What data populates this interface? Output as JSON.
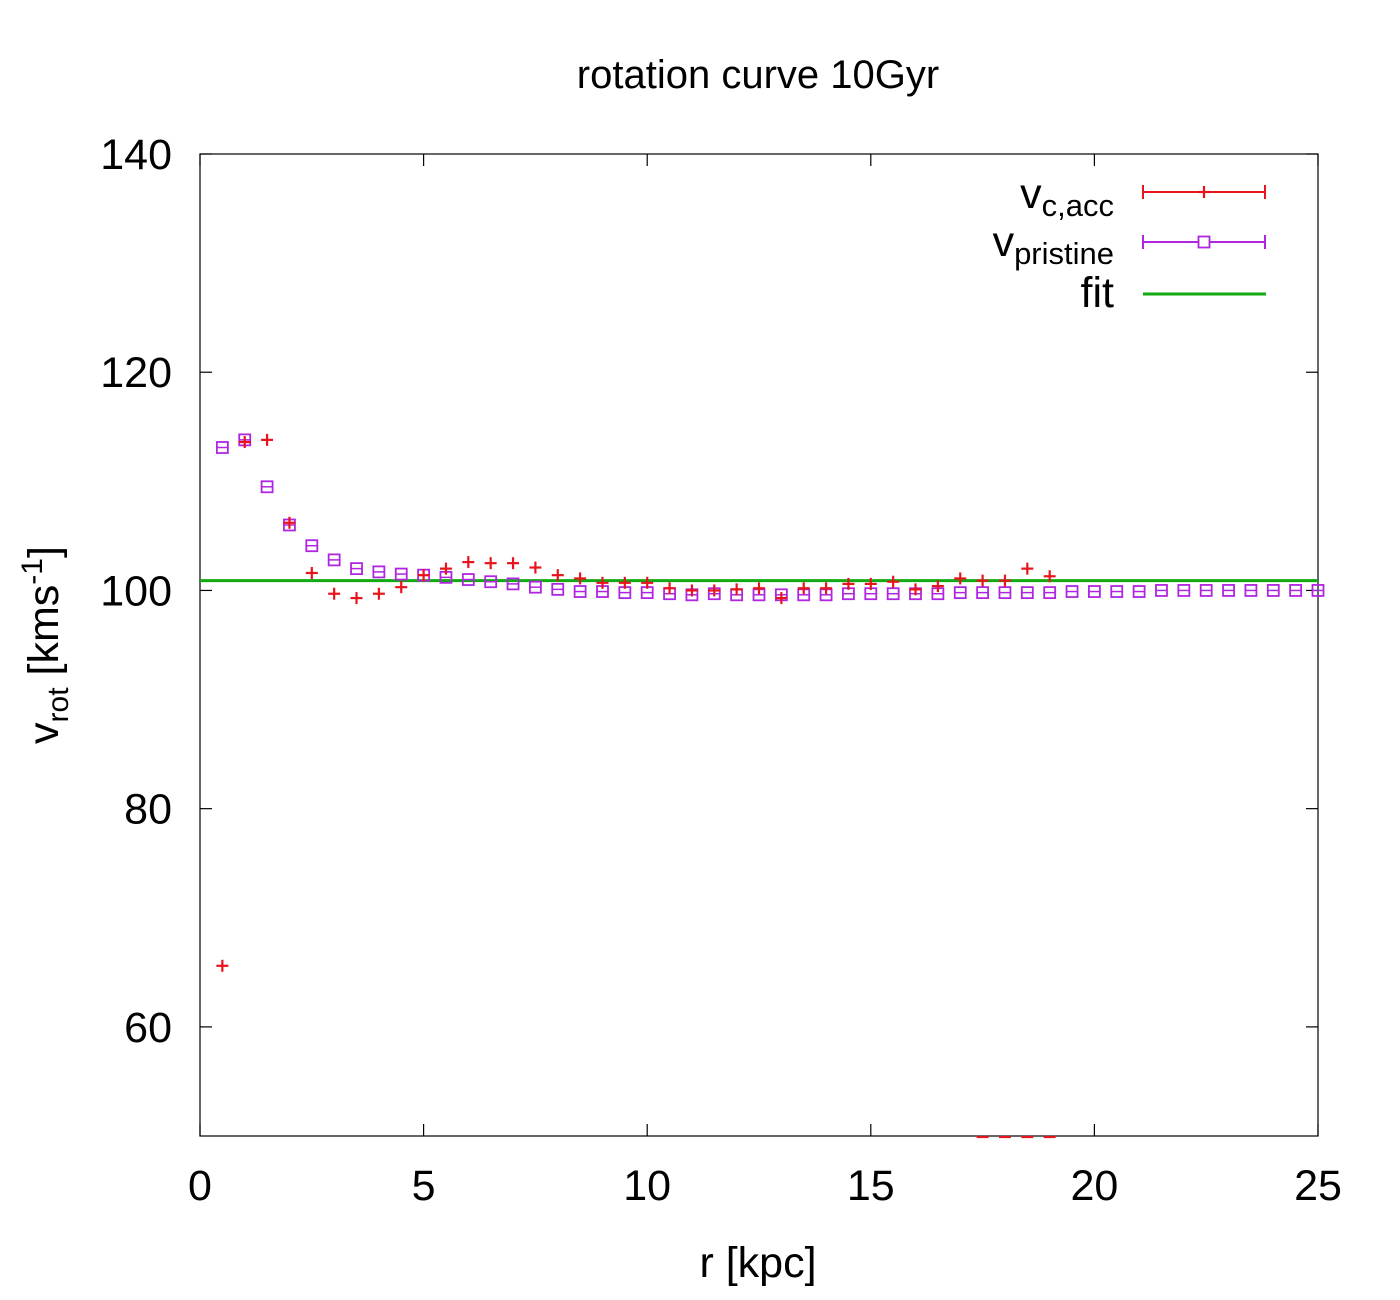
{
  "chart_data": {
    "type": "scatter",
    "title": "rotation curve 10Gyr",
    "xlabel": "r [kpc]",
    "ylabel": {
      "main": "v",
      "sub": "rot",
      "unit_prefix": " [kms",
      "unit_sup": "-1",
      "unit_suffix": "]"
    },
    "xlim": [
      0,
      25
    ],
    "ylim": [
      50,
      140
    ],
    "xticks": [
      0,
      5,
      10,
      15,
      20,
      25
    ],
    "yticks": [
      60,
      80,
      100,
      120,
      140
    ],
    "grid": false,
    "legend_position": "top-right",
    "colors": {
      "acc": "#e8141c",
      "pristine": "#b026e0",
      "fit": "#12aa12",
      "axis": "#000000"
    },
    "series": [
      {
        "key": "acc",
        "legend_main": "v",
        "legend_sub": "c,acc",
        "marker": "plus",
        "x": [
          0.5,
          1.0,
          1.5,
          2.0,
          2.5,
          3.0,
          3.5,
          4.0,
          4.5,
          5.0,
          5.5,
          6.0,
          6.5,
          7.0,
          7.5,
          8.0,
          8.5,
          9.0,
          9.5,
          10.0,
          10.5,
          11.0,
          11.5,
          12.0,
          12.5,
          13.0,
          13.5,
          14.0,
          14.5,
          15.0,
          15.5,
          16.0,
          16.5,
          17.0,
          17.5,
          18.0,
          18.5,
          19.0
        ],
        "y": [
          65.6,
          113.6,
          113.8,
          106.2,
          101.6,
          99.7,
          99.3,
          99.7,
          100.3,
          101.4,
          102.0,
          102.6,
          102.5,
          102.5,
          102.1,
          101.4,
          101.1,
          100.7,
          100.7,
          100.7,
          100.2,
          100.0,
          100.0,
          100.1,
          100.2,
          99.3,
          100.2,
          100.2,
          100.6,
          100.6,
          100.8,
          100.1,
          100.4,
          101.1,
          100.9,
          100.9,
          102.0,
          101.3
        ]
      },
      {
        "key": "pristine",
        "legend_main": "v",
        "legend_sub": "pristine",
        "marker": "square",
        "x": [
          0.5,
          1.0,
          1.5,
          2.0,
          2.5,
          3.0,
          3.5,
          4.0,
          4.5,
          5.0,
          5.5,
          6.0,
          6.5,
          7.0,
          7.5,
          8.0,
          8.5,
          9.0,
          9.5,
          10.0,
          10.5,
          11.0,
          11.5,
          12.0,
          12.5,
          13.0,
          13.5,
          14.0,
          14.5,
          15.0,
          15.5,
          16.0,
          16.5,
          17.0,
          17.5,
          18.0,
          18.5,
          19.0,
          19.5,
          20.0,
          20.5,
          21.0,
          21.5,
          22.0,
          22.5,
          23.0,
          23.5,
          24.0,
          24.5,
          25.0
        ],
        "y": [
          113.1,
          113.8,
          109.5,
          106.0,
          104.1,
          102.8,
          102.0,
          101.7,
          101.5,
          101.4,
          101.2,
          101.0,
          100.8,
          100.6,
          100.3,
          100.1,
          99.9,
          99.9,
          99.8,
          99.8,
          99.7,
          99.6,
          99.7,
          99.6,
          99.6,
          99.6,
          99.6,
          99.6,
          99.7,
          99.7,
          99.7,
          99.7,
          99.7,
          99.8,
          99.8,
          99.8,
          99.8,
          99.8,
          99.9,
          99.9,
          99.9,
          99.9,
          100.0,
          100.0,
          100.0,
          100.0,
          100.0,
          100.0,
          100.0,
          100.0
        ]
      },
      {
        "key": "fit",
        "legend_main": "fit",
        "marker": "line",
        "x": [
          0,
          25
        ],
        "y": [
          100.9,
          100.9
        ]
      }
    ],
    "offscale_acc_x": [
      17.5,
      18.0,
      18.5,
      19.0
    ]
  }
}
